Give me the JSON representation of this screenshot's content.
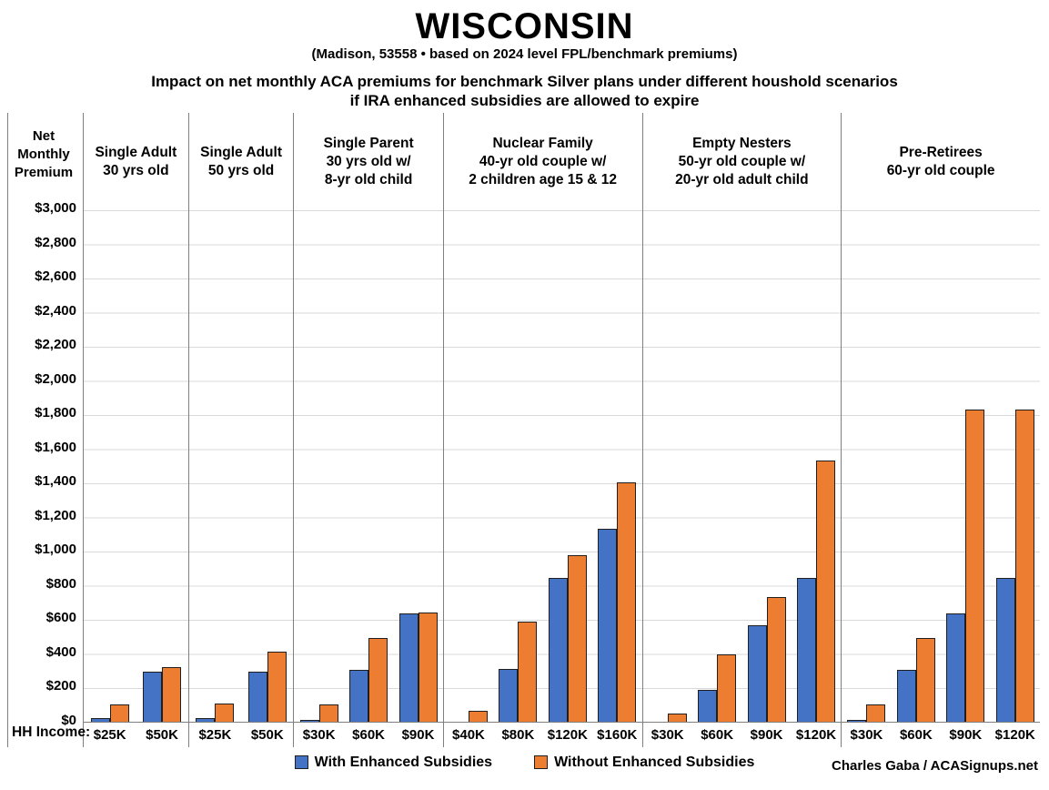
{
  "header": {
    "title": "WISCONSIN",
    "subtitle": "(Madison, 53558 • based on 2024 level FPL/benchmark premiums)",
    "heading_line1": "Impact on net monthly ACA premiums for benchmark Silver plans under different houshold scenarios",
    "heading_line2": "if IRA enhanced subsidies are allowed to expire"
  },
  "axis": {
    "y_title_lines": [
      "Net",
      "Monthly",
      "Premium"
    ],
    "x_title": "HH Income:"
  },
  "legend": [
    {
      "label": "With Enhanced Subsidies",
      "color": "#4472C4"
    },
    {
      "label": "Without Enhanced Subsidies",
      "color": "#ED7D31"
    }
  ],
  "credit": "Charles Gaba / ACASignups.net",
  "colors": {
    "with_enhanced": "#4472C4",
    "without_enhanced": "#ED7D31",
    "bar_outline": "#1f1f1f",
    "gridline": "#d9d9d9",
    "axis_line": "#808080",
    "divider": "#7f7f7f"
  },
  "chart_data": {
    "type": "bar",
    "title": "WISCONSIN — Impact on net monthly ACA premiums for benchmark Silver plans under different houshold scenarios if IRA enhanced subsidies are allowed to expire",
    "ylabel": "Net Monthly Premium",
    "xlabel": "HH Income",
    "ylim": [
      0,
      3000
    ],
    "ytick_step": 200,
    "grid": true,
    "legend_position": "bottom",
    "series_names": [
      "With Enhanced Subsidies",
      "Without Enhanced Subsidies"
    ],
    "groups": [
      {
        "label_lines": [
          "Single Adult",
          "30 yrs old"
        ],
        "incomes": [
          "$25K",
          "$50K"
        ],
        "with_enhanced": [
          20,
          295
        ],
        "without_enhanced": [
          100,
          320
        ]
      },
      {
        "label_lines": [
          "Single Adult",
          "50 yrs old"
        ],
        "incomes": [
          "$25K",
          "$50K"
        ],
        "with_enhanced": [
          20,
          295
        ],
        "without_enhanced": [
          105,
          410
        ]
      },
      {
        "label_lines": [
          "Single Parent",
          "30 yrs old w/",
          "8-yr old child"
        ],
        "incomes": [
          "$30K",
          "$60K",
          "$90K"
        ],
        "with_enhanced": [
          8,
          305,
          635
        ],
        "without_enhanced": [
          100,
          490,
          640
        ]
      },
      {
        "label_lines": [
          "Nuclear Family",
          "40-yr old couple w/",
          "2 children age 15 & 12"
        ],
        "incomes": [
          "$40K",
          "$80K",
          "$120K",
          "$160K"
        ],
        "with_enhanced": [
          0,
          310,
          845,
          1130
        ],
        "without_enhanced": [
          65,
          585,
          975,
          1400
        ]
      },
      {
        "label_lines": [
          "Empty Nesters",
          "50-yr old couple w/",
          "20-yr old adult child"
        ],
        "incomes": [
          "$30K",
          "$60K",
          "$90K",
          "$120K"
        ],
        "with_enhanced": [
          0,
          185,
          565,
          845
        ],
        "without_enhanced": [
          50,
          395,
          730,
          1530
        ]
      },
      {
        "label_lines": [
          "Pre-Retirees",
          "60-yr old couple"
        ],
        "incomes": [
          "$30K",
          "$60K",
          "$90K",
          "$120K"
        ],
        "with_enhanced": [
          8,
          305,
          635,
          845
        ],
        "without_enhanced": [
          100,
          490,
          1830,
          1830
        ]
      }
    ]
  }
}
